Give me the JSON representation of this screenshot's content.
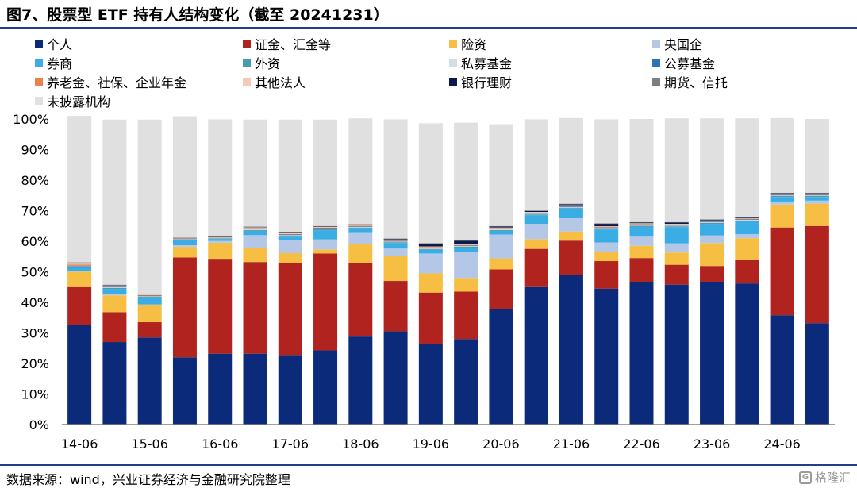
{
  "title": "图7、股票型 ETF 持有人结构变化（截至 20241231）",
  "source": "数据来源：wind，兴业证券经济与金融研究院整理",
  "watermark": {
    "glyph": "G",
    "text": "格隆汇"
  },
  "chart_data": {
    "type": "bar",
    "stacked": true,
    "title": "股票型 ETF 持有人结构变化（截至 20241231）",
    "xlabel": "",
    "ylabel": "",
    "ylim": [
      0,
      100
    ],
    "ytick_labels": [
      "0%",
      "10%",
      "20%",
      "30%",
      "40%",
      "50%",
      "60%",
      "70%",
      "80%",
      "90%",
      "100%"
    ],
    "xtick_labels": [
      {
        "index": 0,
        "label": "14-06"
      },
      {
        "index": 2,
        "label": "15-06"
      },
      {
        "index": 4,
        "label": "16-06"
      },
      {
        "index": 6,
        "label": "17-06"
      },
      {
        "index": 8,
        "label": "18-06"
      },
      {
        "index": 10,
        "label": "19-06"
      },
      {
        "index": 12,
        "label": "20-06"
      },
      {
        "index": 14,
        "label": "21-06"
      },
      {
        "index": 16,
        "label": "22-06"
      },
      {
        "index": 18,
        "label": "23-06"
      },
      {
        "index": 20,
        "label": "24-06"
      }
    ],
    "categories": [
      "14-06",
      "14-12",
      "15-06",
      "15-12",
      "16-06",
      "16-12",
      "17-06",
      "17-12",
      "18-06",
      "18-12",
      "19-06",
      "19-12",
      "20-06",
      "20-12",
      "21-06",
      "21-12",
      "22-06",
      "22-12",
      "23-06",
      "23-12",
      "24-06",
      "24-12"
    ],
    "series": [
      {
        "name": "个人",
        "color": "#0c2a7a",
        "values": [
          32.5,
          27,
          28.5,
          22,
          23.2,
          23.2,
          22.5,
          24.3,
          28.8,
          30.5,
          26.5,
          28,
          37.8,
          45,
          49,
          44.5,
          46.5,
          45.8,
          46.5,
          46.2,
          35.8,
          33.2
        ]
      },
      {
        "name": "证金、汇金等",
        "color": "#b0231e",
        "values": [
          12.5,
          9.8,
          5,
          32.7,
          30.8,
          30,
          30.3,
          31.7,
          24.2,
          16.5,
          16.7,
          15.5,
          13,
          12.5,
          11.2,
          9,
          8,
          6.5,
          5.4,
          7.6,
          28.7,
          31.8
        ]
      },
      {
        "name": "险资",
        "color": "#f6bf43",
        "values": [
          5,
          5.5,
          5.5,
          3.5,
          5.5,
          4.5,
          3.3,
          1.3,
          6,
          8.3,
          6.3,
          4.5,
          3.6,
          3.2,
          3,
          3,
          4,
          4,
          7.5,
          7.2,
          7.5,
          7.3
        ]
      },
      {
        "name": "央国企",
        "color": "#b5c7e7",
        "values": [
          0.3,
          0.3,
          0.3,
          0.5,
          0.6,
          4.3,
          4.2,
          3.3,
          3.7,
          2.3,
          6.5,
          8.6,
          7.8,
          5,
          4.3,
          3.1,
          3,
          3,
          2.5,
          1.3,
          1,
          1
        ]
      },
      {
        "name": "券商",
        "color": "#3aaee4",
        "values": [
          1,
          1.8,
          2.2,
          1.6,
          0.6,
          1.4,
          1.2,
          3,
          1.5,
          1.8,
          1.2,
          1.3,
          1.2,
          2.8,
          3.2,
          4.2,
          3.3,
          5.3,
          3.8,
          4.2,
          1.5,
          1.2
        ]
      },
      {
        "name": "外资",
        "color": "#4b9bb0",
        "values": [
          0.3,
          0.3,
          0.3,
          0.2,
          0.2,
          0.3,
          0.3,
          0.3,
          0.3,
          0.3,
          0.3,
          0.3,
          0.3,
          0.3,
          0.3,
          0.3,
          0.3,
          0.3,
          0.3,
          0.3,
          0.3,
          0.3
        ]
      },
      {
        "name": "私募基金",
        "color": "#d4dcea",
        "values": [
          0.2,
          0.2,
          0.2,
          0.1,
          0.1,
          0.2,
          0.2,
          0.2,
          0.2,
          0.2,
          0.2,
          0.2,
          0.2,
          0.2,
          0.2,
          0.2,
          0.2,
          0.2,
          0.2,
          0.2,
          0.2,
          0.2
        ]
      },
      {
        "name": "公募基金",
        "color": "#2e74b5",
        "values": [
          0.2,
          0.2,
          0.2,
          0.1,
          0.1,
          0.2,
          0.2,
          0.2,
          0.2,
          0.2,
          0.2,
          0.2,
          0.2,
          0.2,
          0.2,
          0.2,
          0.2,
          0.2,
          0.2,
          0.2,
          0.2,
          0.2
        ]
      },
      {
        "name": "养老金、社保、企业年金",
        "color": "#e8834e",
        "values": [
          0.4,
          0.2,
          0.2,
          0.1,
          0.1,
          0.2,
          0.2,
          0.2,
          0.2,
          0.2,
          0.2,
          0.2,
          0.2,
          0.2,
          0.2,
          0.2,
          0.2,
          0.2,
          0.2,
          0.2,
          0.2,
          0.2
        ]
      },
      {
        "name": "其他法人",
        "color": "#f4c9b5",
        "values": [
          0.3,
          0.2,
          0.2,
          0.1,
          0.1,
          0.2,
          0.2,
          0.2,
          0.2,
          0.2,
          0.2,
          0.2,
          0.2,
          0.2,
          0.2,
          0.2,
          0.2,
          0.2,
          0.2,
          0.2,
          0.2,
          0.2
        ]
      },
      {
        "name": "银行理财",
        "color": "#0b1a4a",
        "values": [
          0.1,
          0.1,
          0.1,
          0.1,
          0.1,
          0.1,
          0.1,
          0.1,
          0.1,
          0.2,
          0.9,
          1.2,
          0.3,
          0.3,
          0.3,
          0.8,
          0.2,
          0.4,
          0.2,
          0.2,
          0.1,
          0.1
        ]
      },
      {
        "name": "期货、信托",
        "color": "#7f7f7f",
        "values": [
          0.3,
          0.2,
          0.2,
          0.2,
          0.2,
          0.2,
          0.2,
          0.2,
          0.2,
          0.2,
          0.2,
          0.2,
          0.2,
          0.2,
          0.2,
          0.2,
          0.2,
          0.2,
          0.2,
          0.2,
          0.2,
          0.2
        ]
      },
      {
        "name": "未披露机构",
        "color": "#e0e0e0",
        "values": [
          47.9,
          54,
          56.9,
          39.7,
          38.3,
          35,
          36.9,
          34.8,
          34.6,
          39,
          39.2,
          38.4,
          33.3,
          29.8,
          28,
          34,
          33.7,
          33.9,
          33,
          32.2,
          24.4,
          24.1
        ]
      }
    ]
  }
}
